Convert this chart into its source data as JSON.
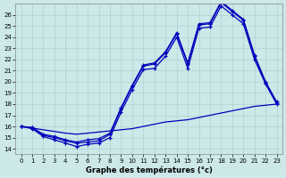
{
  "title": "Graphe des températures (°c)",
  "xlim": [
    -0.5,
    23.5
  ],
  "ylim": [
    13.5,
    27
  ],
  "yticks": [
    14,
    15,
    16,
    17,
    18,
    19,
    20,
    21,
    22,
    23,
    24,
    25,
    26
  ],
  "xticks": [
    0,
    1,
    2,
    3,
    4,
    5,
    6,
    7,
    8,
    9,
    10,
    11,
    12,
    13,
    14,
    15,
    16,
    17,
    18,
    19,
    20,
    21,
    22,
    23
  ],
  "bg_color": "#cce8e8",
  "line_color": "#0000bb",
  "line1_y": [
    16.0,
    15.8,
    15.1,
    14.8,
    14.5,
    14.2,
    14.4,
    14.5,
    15.0,
    17.3,
    19.3,
    21.1,
    21.2,
    22.3,
    24.0,
    21.2,
    24.8,
    24.9,
    26.8,
    26.0,
    25.2,
    22.0,
    19.8,
    18.0
  ],
  "line2_y": [
    16.0,
    15.9,
    15.2,
    15.0,
    14.7,
    14.5,
    14.6,
    14.7,
    15.3,
    17.6,
    19.6,
    21.4,
    21.6,
    22.6,
    24.3,
    21.6,
    25.1,
    25.2,
    27.1,
    26.3,
    25.5,
    22.3,
    19.9,
    18.1
  ],
  "line3_y": [
    16.0,
    15.9,
    15.3,
    15.1,
    14.8,
    14.6,
    14.8,
    14.9,
    15.4,
    17.7,
    19.7,
    21.5,
    21.7,
    22.7,
    24.4,
    21.7,
    25.2,
    25.3,
    27.2,
    26.4,
    25.6,
    22.4,
    20.0,
    18.2
  ],
  "line_min_y": [
    16.0,
    15.85,
    15.7,
    15.55,
    15.4,
    15.3,
    15.4,
    15.5,
    15.6,
    15.7,
    15.8,
    16.0,
    16.2,
    16.4,
    16.5,
    16.6,
    16.8,
    17.0,
    17.2,
    17.4,
    17.6,
    17.8,
    17.9,
    18.0
  ]
}
